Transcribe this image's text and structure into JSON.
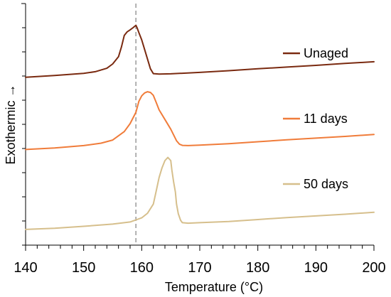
{
  "chart_data": {
    "type": "line",
    "title": "",
    "xlabel": "Temperature (°C)",
    "ylabel": "Exothermic →",
    "xlim": [
      140,
      200
    ],
    "ylim": [
      0,
      100
    ],
    "x_ticks": [
      "140",
      "150",
      "160",
      "170",
      "180",
      "190",
      "200"
    ],
    "minor_x_step": 2,
    "y_ticks_shown": false,
    "grid": false,
    "reference_line": {
      "x": 159,
      "style": "dashed",
      "color": "#999999"
    },
    "legend_placement": "inline-right",
    "series": [
      {
        "name": "Unaged",
        "color": "#7a2a10",
        "x": [
          140,
          145,
          150,
          152,
          154,
          155,
          156,
          156.5,
          157,
          157.5,
          158,
          158.5,
          159,
          159.2,
          159.5,
          160,
          160.5,
          161,
          161.5,
          162,
          163,
          165,
          170,
          175,
          180,
          185,
          190,
          195,
          200
        ],
        "y": [
          69.5,
          70.2,
          71.1,
          71.8,
          73.2,
          75,
          78,
          82,
          86.8,
          88.3,
          89.1,
          90,
          91,
          90,
          88,
          85,
          81,
          77,
          73,
          71,
          70.8,
          70.9,
          71.5,
          72.2,
          73,
          73.7,
          74.4,
          75.2,
          75.9
        ]
      },
      {
        "name": "11 days",
        "color": "#f07c3a",
        "x": [
          140,
          145,
          150,
          153,
          155,
          157,
          158,
          159,
          159.5,
          160,
          160.5,
          161,
          161.5,
          162,
          162.5,
          163,
          164,
          165,
          166,
          166.5,
          167,
          168,
          170,
          175,
          180,
          185,
          190,
          195,
          200
        ],
        "y": [
          39.6,
          40.2,
          41.2,
          42.2,
          43.5,
          47,
          50.3,
          55,
          59.5,
          61.8,
          63,
          63.5,
          63.2,
          62,
          59,
          56,
          52,
          48,
          43.2,
          41.8,
          41.3,
          41.2,
          41.4,
          42,
          42.8,
          43.6,
          44.3,
          45,
          45.8
        ]
      },
      {
        "name": "50 days",
        "color": "#d6bf8c",
        "x": [
          140,
          145,
          150,
          155,
          158,
          160,
          161,
          162,
          162.5,
          163,
          163.5,
          164,
          164.5,
          165,
          165.2,
          165.5,
          165.8,
          166,
          166.3,
          166.7,
          167,
          168,
          170,
          175,
          180,
          185,
          190,
          195,
          200
        ],
        "y": [
          6.5,
          7,
          7.8,
          8.7,
          9.6,
          11.3,
          13.2,
          17,
          22.5,
          28,
          32,
          35,
          36.3,
          35,
          31,
          26,
          22,
          17,
          13,
          10.3,
          9.3,
          9.1,
          9.3,
          9.8,
          10.6,
          11.4,
          12.1,
          12.8,
          13.6
        ]
      }
    ]
  }
}
